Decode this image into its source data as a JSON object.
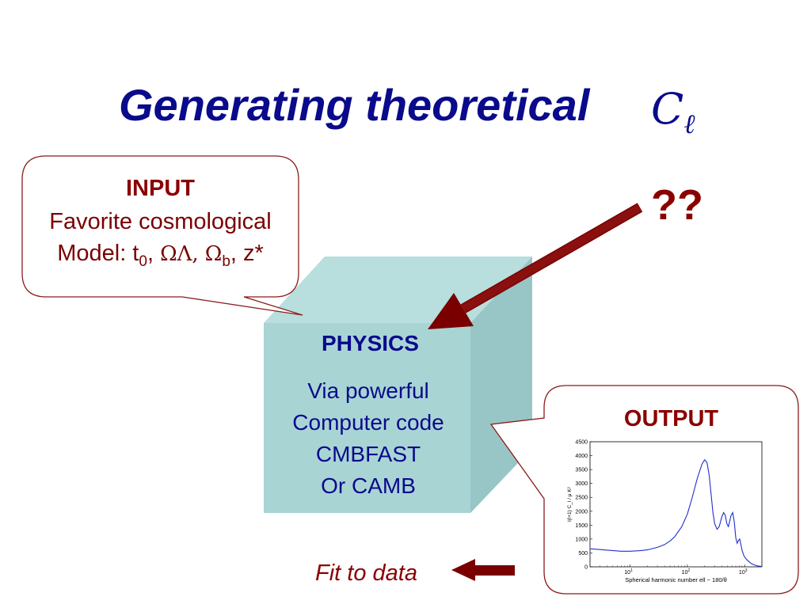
{
  "title": {
    "text": "Generating theoretical",
    "symbol_main": "C",
    "symbol_sub": "ℓ"
  },
  "input": {
    "heading": "INPUT",
    "line1": "Favorite cosmological",
    "line2_prefix": "Model: t",
    "line2_t_sub": "0",
    "line2_sep1": ", ",
    "omega_lambda": "ΩΛ,",
    "omega_b": "Ω",
    "omega_b_sub": "b",
    "line2_suffix": ", z*"
  },
  "question_marks": "??",
  "physics": {
    "heading": "PHYSICS",
    "lines": [
      "Via powerful",
      "Computer code",
      "CMBFAST",
      "Or CAMB"
    ]
  },
  "output": {
    "heading": "OUTPUT"
  },
  "fit_to_data": "Fit to data",
  "colors": {
    "title_blue": "#0a0a8c",
    "dark_red": "#8a0000",
    "cube_front": "#a9d4d4",
    "cube_top": "#b8dede",
    "cube_side": "#98c6c6"
  },
  "chart_data": {
    "type": "line",
    "xscale": "log",
    "xlim": [
      2,
      2000
    ],
    "ylim": [
      0,
      4500
    ],
    "ylabel": "l(l+1) C_l / μ K²",
    "xlabel": "Spherical harmonic number ell ~ 180/θ",
    "yticks": [
      "0",
      "500",
      "1000",
      "1500",
      "2000",
      "2500",
      "3000",
      "3500",
      "4000",
      "4500"
    ],
    "xticks": [
      {
        "value": 10,
        "base": "10",
        "exp": "1"
      },
      {
        "value": 100,
        "base": "10",
        "exp": "2"
      },
      {
        "value": 1000,
        "base": "10",
        "exp": "3"
      }
    ],
    "series": [
      {
        "color": "#1f2fd0",
        "x": [
          2,
          4,
          7,
          10,
          15,
          20,
          30,
          40,
          50,
          60,
          80,
          100,
          120,
          150,
          180,
          200,
          220,
          240,
          260,
          280,
          300,
          330,
          360,
          400,
          430,
          460,
          490,
          520,
          550,
          580,
          620,
          660,
          700,
          740,
          780,
          820,
          860,
          900,
          950,
          1000,
          1100,
          1200,
          1300,
          1500,
          1700,
          2000
        ],
        "y": [
          650,
          600,
          560,
          560,
          580,
          610,
          700,
          800,
          930,
          1080,
          1450,
          1900,
          2450,
          3200,
          3700,
          3850,
          3750,
          3300,
          2600,
          1950,
          1550,
          1350,
          1450,
          1800,
          1950,
          1850,
          1550,
          1450,
          1650,
          1850,
          1950,
          1600,
          1050,
          850,
          950,
          1000,
          800,
          600,
          450,
          350,
          250,
          180,
          120,
          60,
          30,
          10
        ]
      }
    ]
  }
}
